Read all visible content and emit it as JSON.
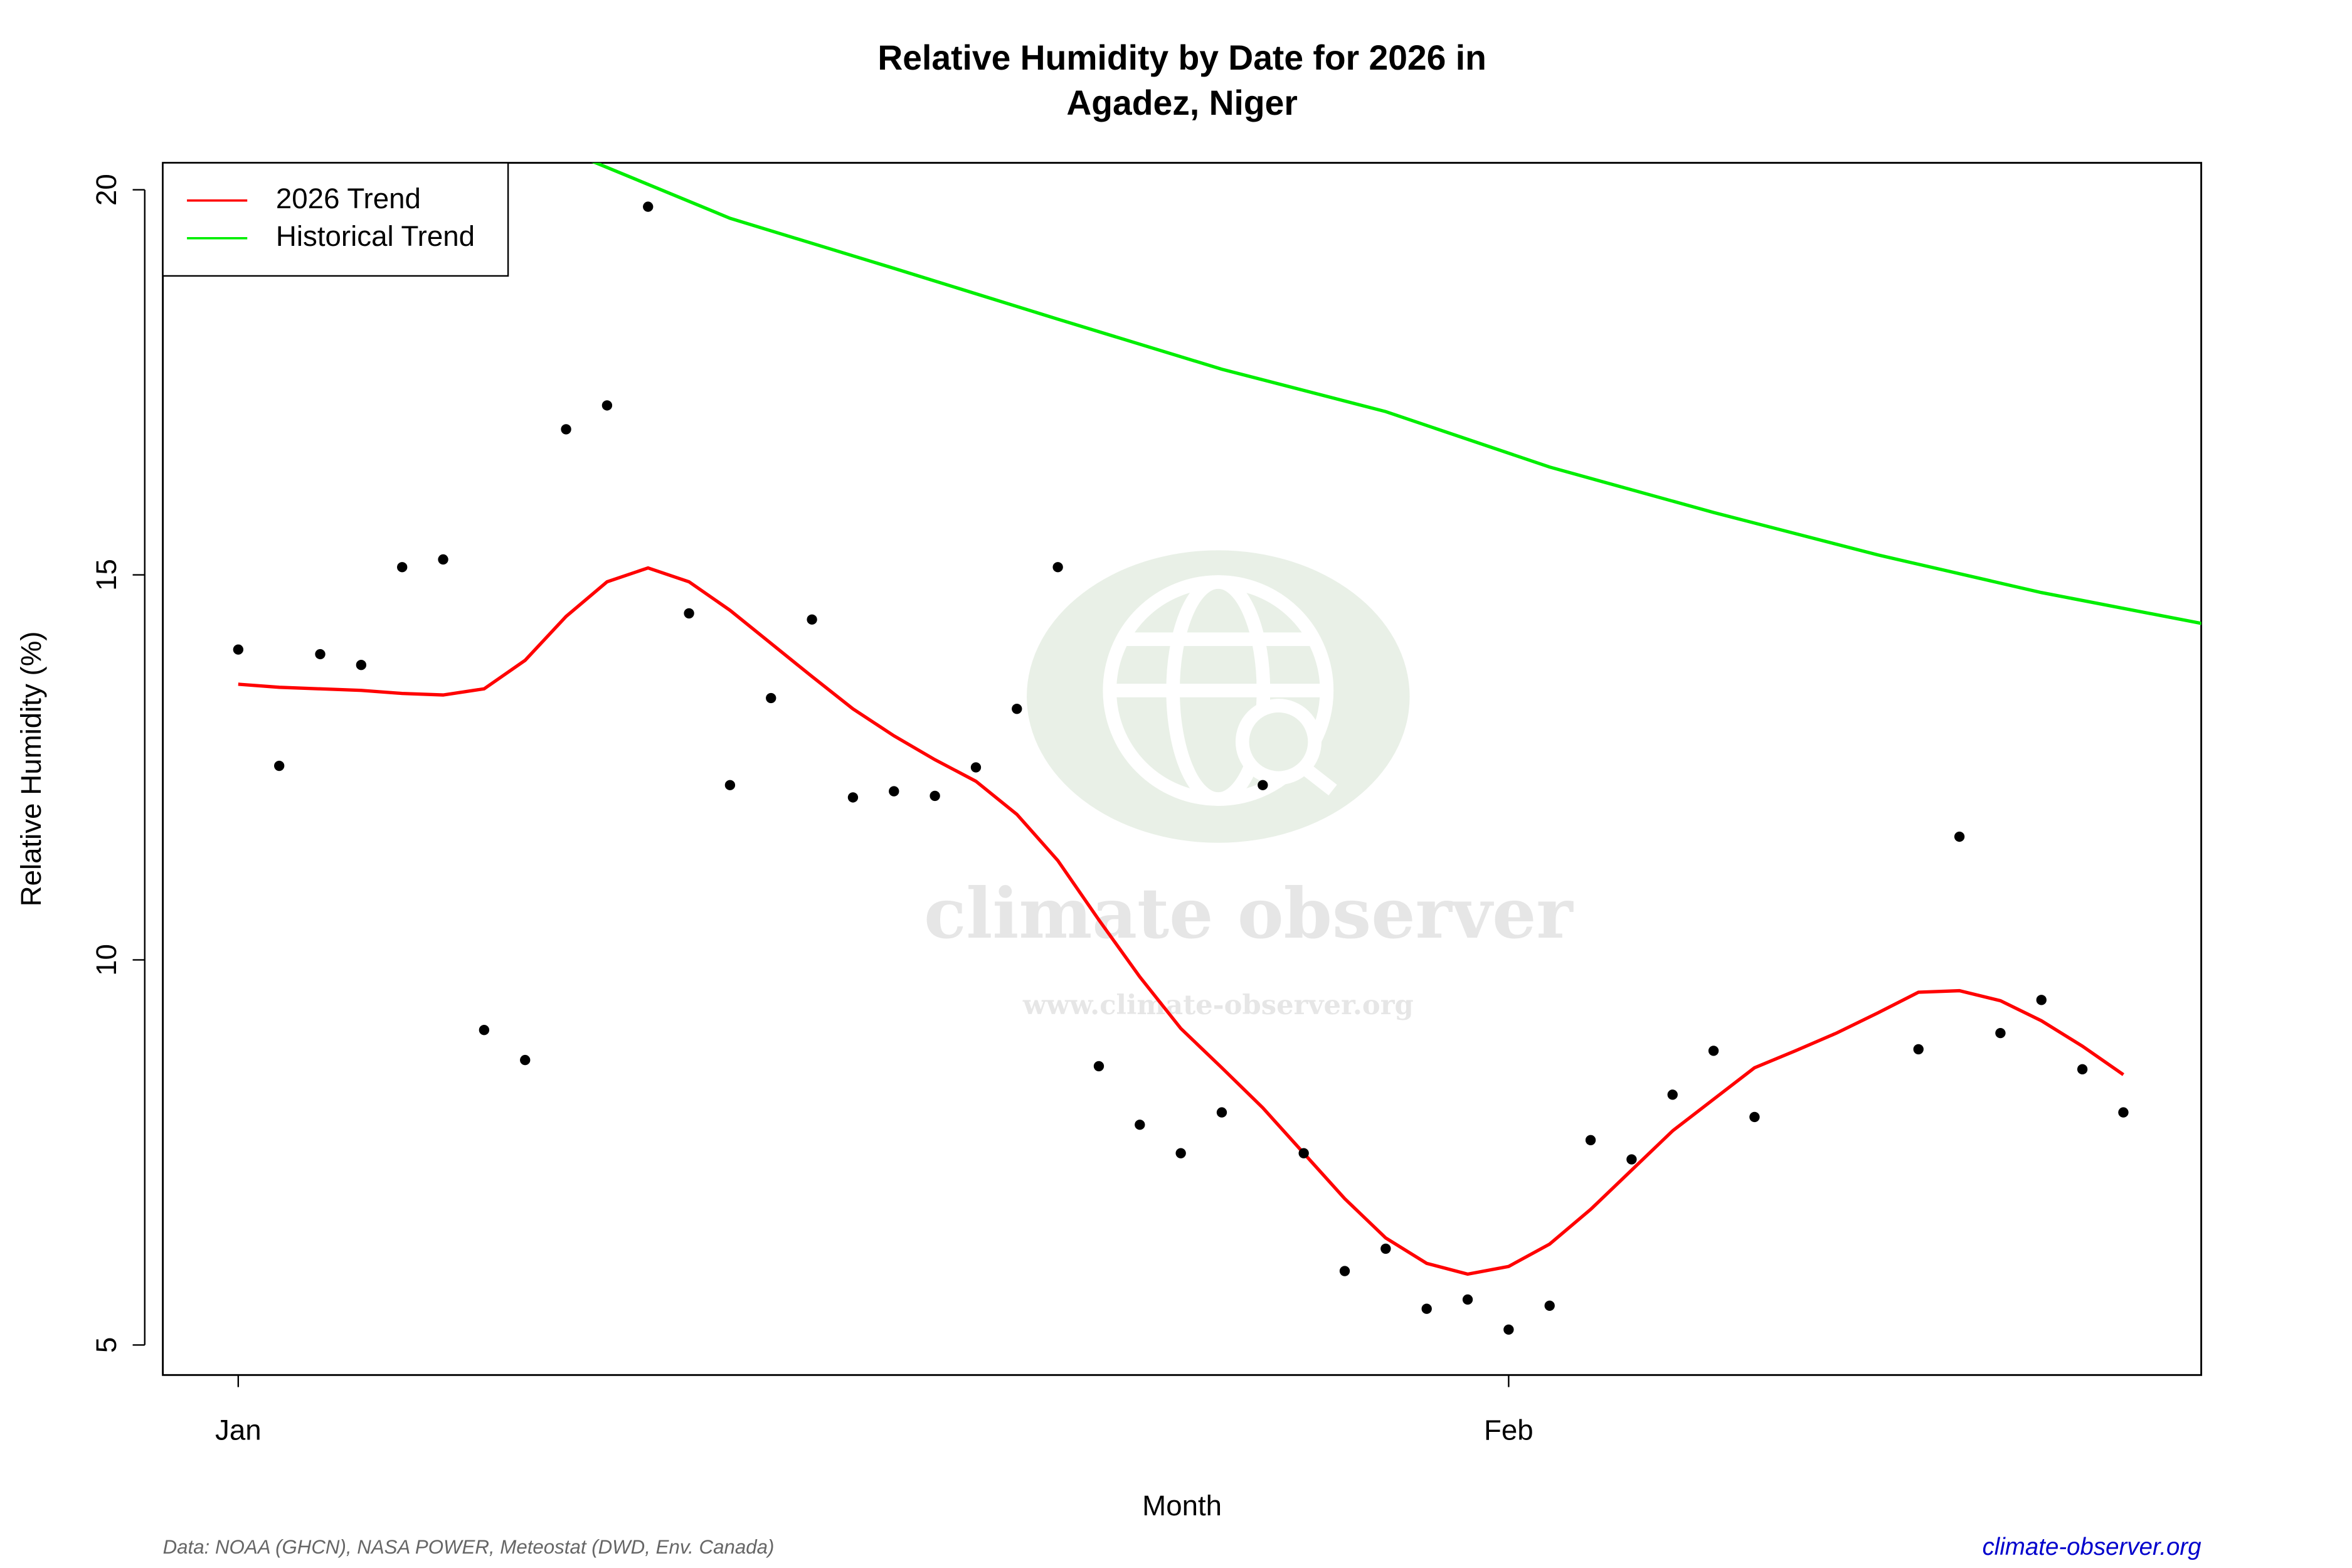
{
  "chart_data": {
    "type": "scatter",
    "title": "Relative Humidity by Date for 2026 in",
    "subtitle": "Agadez, Niger",
    "x_label": "Month",
    "y_label": "Relative Humidity (%)",
    "xlim": [
      -1.84,
      47.9
    ],
    "xticks": [
      {
        "value": 0,
        "label": "Jan"
      },
      {
        "value": 31,
        "label": "Feb"
      }
    ],
    "ylim": [
      4.61,
      20.35
    ],
    "yticks": [
      5,
      10,
      15,
      20
    ],
    "legend": "topleft",
    "points": {
      "color": "#000000",
      "x": [
        0,
        1,
        2,
        3,
        4,
        5,
        6,
        7,
        8,
        9,
        10,
        11,
        12,
        13,
        14,
        15,
        16,
        17,
        18,
        19,
        20,
        21,
        22,
        23,
        24,
        25,
        26,
        27,
        28,
        29,
        30,
        31,
        32,
        33,
        34,
        35,
        36,
        37,
        41,
        42,
        43,
        44,
        45,
        46
      ],
      "values": [
        14.03,
        12.52,
        13.97,
        13.83,
        15.1,
        15.2,
        9.09,
        8.7,
        16.89,
        17.2,
        19.78,
        14.5,
        12.27,
        13.4,
        14.42,
        12.11,
        12.19,
        12.13,
        12.5,
        13.26,
        15.1,
        8.62,
        7.86,
        7.49,
        8.02,
        12.27,
        7.49,
        5.96,
        6.25,
        5.47,
        5.59,
        5.2,
        5.51,
        7.66,
        7.41,
        8.25,
        8.82,
        7.96,
        8.84,
        11.6,
        9.05,
        9.48,
        8.58,
        8.02
      ]
    },
    "series": [
      {
        "name": "2026 Trend",
        "color": "#ff0000",
        "x": [
          0,
          1,
          2,
          3,
          4,
          5,
          6,
          7,
          8,
          9,
          10,
          11,
          12,
          13,
          14,
          15,
          16,
          17,
          18,
          19,
          20,
          21,
          22,
          23,
          24,
          25,
          26,
          27,
          28,
          29,
          30,
          31,
          32,
          33,
          34,
          35,
          36,
          37,
          38,
          39,
          40,
          41,
          42,
          43,
          44,
          45,
          46
        ],
        "values": [
          13.58,
          13.54,
          13.52,
          13.5,
          13.46,
          13.44,
          13.52,
          13.89,
          14.46,
          14.91,
          15.09,
          14.91,
          14.54,
          14.11,
          13.68,
          13.26,
          12.91,
          12.6,
          12.32,
          11.89,
          11.29,
          10.52,
          9.78,
          9.11,
          8.6,
          8.08,
          7.49,
          6.9,
          6.39,
          6.06,
          5.92,
          6.02,
          6.31,
          6.76,
          7.27,
          7.78,
          8.19,
          8.6,
          8.82,
          9.05,
          9.31,
          9.58,
          9.6,
          9.47,
          9.21,
          8.88,
          8.51
        ]
      },
      {
        "name": "Historical Trend",
        "color": "#00ee00",
        "x": [
          8,
          12,
          16,
          20,
          24,
          28,
          32,
          36,
          40,
          44,
          48
        ],
        "values": [
          20.51,
          19.63,
          18.98,
          18.32,
          17.67,
          17.12,
          16.4,
          15.81,
          15.26,
          14.77,
          14.36
        ]
      }
    ]
  },
  "watermark": {
    "name": "climate observer",
    "url": "www.climate-observer.org"
  },
  "footer": {
    "source": "Data: NOAA (GHCN), NASA POWER, Meteostat (DWD, Env. Canada)",
    "site": "climate-observer.org"
  }
}
